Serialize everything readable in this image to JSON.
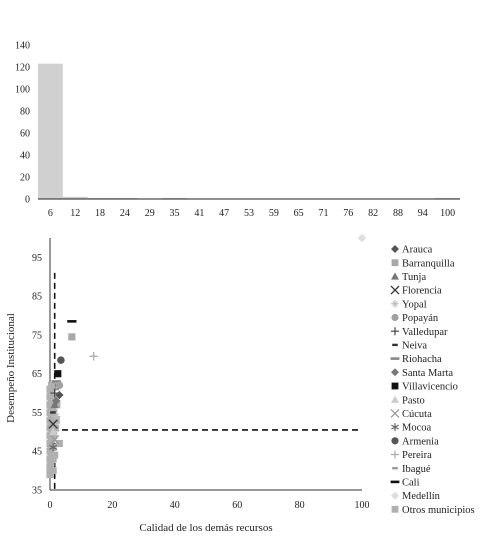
{
  "chart_data": [
    {
      "type": "bar",
      "title": "",
      "xlabel": "",
      "ylabel": "",
      "ylim": [
        0,
        140
      ],
      "yticks": [
        0,
        20,
        40,
        60,
        80,
        100,
        120,
        140
      ],
      "categories": [
        "6",
        "12",
        "18",
        "24",
        "29",
        "35",
        "41",
        "47",
        "53",
        "59",
        "65",
        "71",
        "76",
        "82",
        "88",
        "94",
        "100"
      ],
      "values": [
        123,
        2,
        1,
        1,
        0,
        1,
        0,
        0,
        0,
        0,
        0,
        0,
        0,
        0,
        0,
        0,
        1
      ],
      "color": "#d0d0d0"
    },
    {
      "type": "scatter",
      "title": "",
      "xlabel": "Calidad de los demás recursos",
      "ylabel": "Desempeño Institucional",
      "xlim": [
        0,
        100
      ],
      "ylim": [
        35,
        100
      ],
      "xticks": [
        0,
        20,
        40,
        60,
        80,
        100
      ],
      "yticks": [
        35,
        45,
        55,
        65,
        75,
        85,
        95
      ],
      "reference_lines": {
        "vertical_x": 1.5,
        "horizontal_y": 50.5,
        "style": "dashed"
      },
      "legend_position": "right",
      "series": [
        {
          "name": "Arauca",
          "marker": "diamond",
          "color": "#555555",
          "points": [
            [
              3,
              59.5
            ]
          ]
        },
        {
          "name": "Barranquilla",
          "marker": "square",
          "color": "#a8a8a8",
          "points": [
            [
              7,
              74.5
            ]
          ]
        },
        {
          "name": "Tunja",
          "marker": "triangle",
          "color": "#777777",
          "points": [
            [
              1.5,
              57
            ]
          ]
        },
        {
          "name": "Florencia",
          "marker": "x",
          "color": "#333333",
          "points": [
            [
              1,
              52
            ]
          ]
        },
        {
          "name": "Yopal",
          "marker": "star",
          "color": "#bbbbbb",
          "points": [
            [
              2,
              54
            ]
          ]
        },
        {
          "name": "Popayán",
          "marker": "circle",
          "color": "#a0a0a0",
          "points": [
            [
              3,
              62
            ]
          ]
        },
        {
          "name": "Valledupar",
          "marker": "plus",
          "color": "#444444",
          "points": [
            [
              1.5,
              60
            ]
          ]
        },
        {
          "name": "Neiva",
          "marker": "dash",
          "color": "#333333",
          "points": [
            [
              1,
              55
            ]
          ]
        },
        {
          "name": "Riohacha",
          "marker": "longdash",
          "color": "#888888",
          "points": [
            [
              2,
              63
            ]
          ]
        },
        {
          "name": "Santa Marta",
          "marker": "diamond",
          "color": "#777777",
          "points": [
            [
              2,
              58
            ]
          ]
        },
        {
          "name": "Villavicencio",
          "marker": "square",
          "color": "#111111",
          "points": [
            [
              2.5,
              65
            ]
          ]
        },
        {
          "name": "Pasto",
          "marker": "triangle",
          "color": "#cccccc",
          "points": [
            [
              1,
              50
            ]
          ]
        },
        {
          "name": "Cúcuta",
          "marker": "x",
          "color": "#999999",
          "points": [
            [
              1.5,
              48
            ]
          ]
        },
        {
          "name": "Mocoa",
          "marker": "asterisk",
          "color": "#666666",
          "points": [
            [
              1,
              46
            ]
          ]
        },
        {
          "name": "Armenia",
          "marker": "circle",
          "color": "#555555",
          "points": [
            [
              3.5,
              68.5
            ]
          ]
        },
        {
          "name": "Pereira",
          "marker": "plus",
          "color": "#aaaaaa",
          "points": [
            [
              14,
              69.5
            ]
          ]
        },
        {
          "name": "Ibagué",
          "marker": "dash",
          "color": "#999999",
          "points": [
            [
              2,
              61
            ]
          ]
        },
        {
          "name": "Cali",
          "marker": "longdash",
          "color": "#111111",
          "points": [
            [
              7,
              78.5
            ]
          ]
        },
        {
          "name": "Medellín",
          "marker": "diamond",
          "color": "#dddddd",
          "points": [
            [
              100,
              100
            ]
          ]
        },
        {
          "name": "Otros municipios",
          "marker": "square",
          "color": "#b0b0b0",
          "points": [
            [
              0,
              39
            ],
            [
              0,
              40
            ],
            [
              0,
              41
            ],
            [
              0.3,
              42
            ],
            [
              0,
              43
            ],
            [
              0.5,
              44
            ],
            [
              0,
              45
            ],
            [
              0.3,
              46
            ],
            [
              0,
              47
            ],
            [
              0.5,
              48
            ],
            [
              0,
              49
            ],
            [
              0.5,
              50
            ],
            [
              0,
              51
            ],
            [
              0.3,
              52
            ],
            [
              0,
              53
            ],
            [
              0.5,
              54
            ],
            [
              0,
              55
            ],
            [
              0.3,
              56
            ],
            [
              0,
              57
            ],
            [
              0.5,
              58
            ],
            [
              0,
              59
            ],
            [
              0.3,
              60
            ],
            [
              0,
              61
            ],
            [
              0.5,
              62
            ],
            [
              1,
              40
            ],
            [
              1,
              43
            ],
            [
              1,
              46
            ],
            [
              1.2,
              49
            ],
            [
              1,
              52
            ],
            [
              1.2,
              55
            ],
            [
              1,
              58
            ],
            [
              1.5,
              44
            ],
            [
              2,
              53
            ],
            [
              3,
              47
            ],
            [
              1.8,
              51
            ],
            [
              0.8,
              56
            ],
            [
              0.6,
              60
            ],
            [
              2.2,
              57
            ]
          ]
        }
      ]
    }
  ]
}
